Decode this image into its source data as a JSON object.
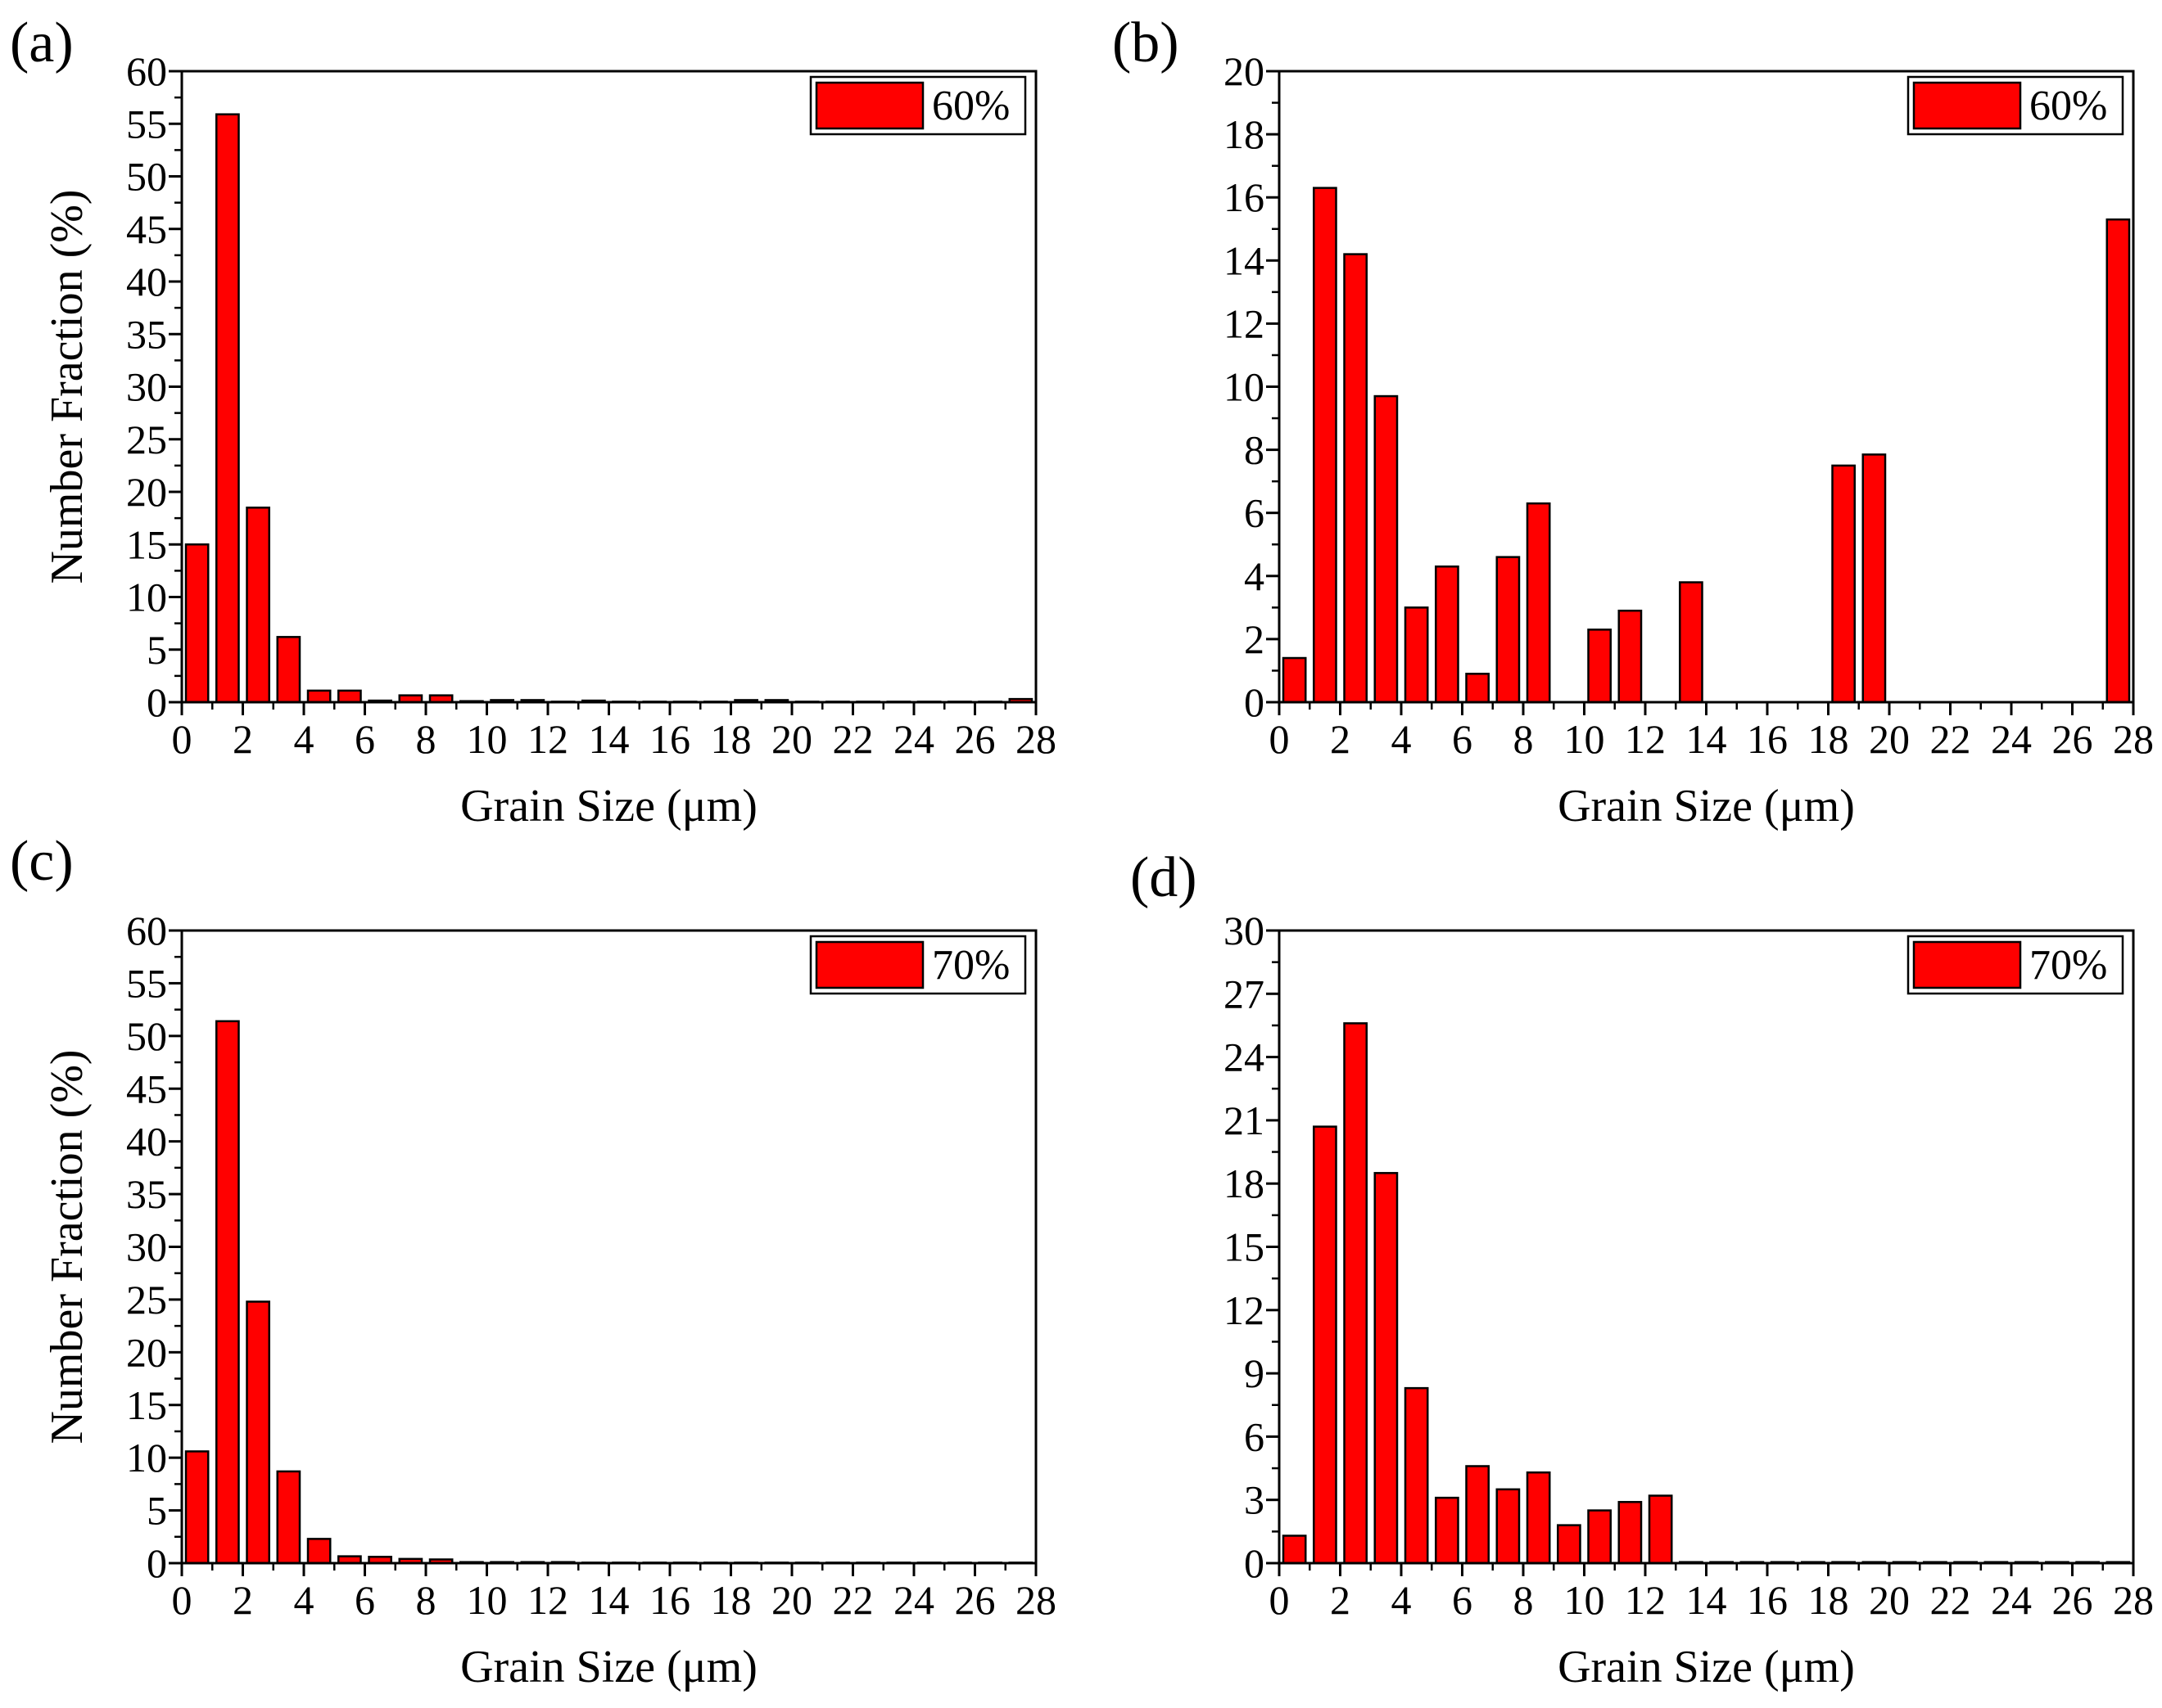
{
  "figure": {
    "bar_color": "#ff0000",
    "edge_color": "#000000"
  },
  "chart_data": [
    {
      "type": "bar",
      "panel": "(a)",
      "legend": "60%",
      "xlabel": "Grain Size (μm)",
      "ylabel": "Number Fraction (%)",
      "xlim": [
        0,
        28
      ],
      "ylim": [
        0,
        60
      ],
      "xticks": [
        0,
        2,
        4,
        6,
        8,
        10,
        12,
        14,
        16,
        18,
        20,
        22,
        24,
        26,
        28
      ],
      "yticks": [
        0,
        5,
        10,
        15,
        20,
        25,
        30,
        35,
        40,
        45,
        50,
        55,
        60
      ],
      "bin_width": 1,
      "x": [
        0.5,
        1.5,
        2.5,
        3.5,
        4.5,
        5.5,
        6.5,
        7.5,
        8.5,
        9.5,
        10.5,
        11.5,
        12.5,
        13.5,
        14.5,
        15.5,
        16.5,
        17.5,
        18.5,
        19.5,
        20.5,
        21.5,
        22.5,
        23.5,
        24.5,
        25.5,
        26.5,
        27.5
      ],
      "values": [
        15.0,
        55.9,
        18.5,
        6.2,
        1.1,
        1.1,
        0.15,
        0.65,
        0.65,
        0.1,
        0.2,
        0.2,
        0.05,
        0.15,
        0.05,
        0.05,
        0.05,
        0.05,
        0.2,
        0.2,
        0.05,
        0.05,
        0.05,
        0.05,
        0.05,
        0.05,
        0.05,
        0.3
      ]
    },
    {
      "type": "bar",
      "panel": "(b)",
      "legend": "60%",
      "xlabel": "Grain Size (μm)",
      "ylabel": "",
      "xlim": [
        0,
        28
      ],
      "ylim": [
        0,
        20
      ],
      "xticks": [
        0,
        2,
        4,
        6,
        8,
        10,
        12,
        14,
        16,
        18,
        20,
        22,
        24,
        26,
        28
      ],
      "yticks": [
        0,
        2,
        4,
        6,
        8,
        10,
        12,
        14,
        16,
        18,
        20
      ],
      "bin_width": 1,
      "x": [
        0.5,
        1.5,
        2.5,
        3.5,
        4.5,
        5.5,
        6.5,
        7.5,
        8.5,
        9.5,
        10.5,
        11.5,
        12.5,
        13.5,
        14.5,
        15.5,
        16.5,
        17.5,
        18.5,
        19.5,
        20.5,
        21.5,
        22.5,
        23.5,
        24.5,
        25.5,
        26.5,
        27.5
      ],
      "values": [
        1.4,
        16.3,
        14.2,
        9.7,
        3.0,
        4.3,
        0.9,
        4.6,
        6.3,
        0,
        2.3,
        2.9,
        0,
        3.8,
        0,
        0,
        0,
        0,
        7.5,
        7.85,
        0,
        0,
        0,
        0,
        0,
        0,
        0,
        15.3
      ]
    },
    {
      "type": "bar",
      "panel": "(c)",
      "legend": "70%",
      "xlabel": "Grain Size (μm)",
      "ylabel": "Number Fraction (%)",
      "xlim": [
        0,
        28
      ],
      "ylim": [
        0,
        60
      ],
      "xticks": [
        0,
        2,
        4,
        6,
        8,
        10,
        12,
        14,
        16,
        18,
        20,
        22,
        24,
        26,
        28
      ],
      "yticks": [
        0,
        5,
        10,
        15,
        20,
        25,
        30,
        35,
        40,
        45,
        50,
        55,
        60
      ],
      "bin_width": 1,
      "x": [
        0.5,
        1.5,
        2.5,
        3.5,
        4.5,
        5.5,
        6.5,
        7.5,
        8.5,
        9.5,
        10.5,
        11.5,
        12.5,
        13.5,
        14.5,
        15.5,
        16.5,
        17.5,
        18.5,
        19.5,
        20.5,
        21.5,
        22.5,
        23.5,
        24.5,
        25.5,
        26.5,
        27.5
      ],
      "values": [
        10.6,
        51.4,
        24.8,
        8.7,
        2.3,
        0.65,
        0.6,
        0.4,
        0.35,
        0.1,
        0.1,
        0.1,
        0.1,
        0.05,
        0.05,
        0.05,
        0.05,
        0.05,
        0.05,
        0.05,
        0.05,
        0.05,
        0.05,
        0.05,
        0.05,
        0.05,
        0.05,
        0.05
      ]
    },
    {
      "type": "bar",
      "panel": "(d)",
      "legend": "70%",
      "xlabel": "Grain Size (μm)",
      "ylabel": "",
      "xlim": [
        0,
        28
      ],
      "ylim": [
        0,
        30
      ],
      "xticks": [
        0,
        2,
        4,
        6,
        8,
        10,
        12,
        14,
        16,
        18,
        20,
        22,
        24,
        26,
        28
      ],
      "yticks": [
        0,
        3,
        6,
        9,
        12,
        15,
        18,
        21,
        24,
        27,
        30
      ],
      "bin_width": 1,
      "x": [
        0.5,
        1.5,
        2.5,
        3.5,
        4.5,
        5.5,
        6.5,
        7.5,
        8.5,
        9.5,
        10.5,
        11.5,
        12.5,
        13.5,
        14.5,
        15.5,
        16.5,
        17.5,
        18.5,
        19.5,
        20.5,
        21.5,
        22.5,
        23.5,
        24.5,
        25.5,
        26.5,
        27.5
      ],
      "values": [
        1.3,
        20.7,
        25.6,
        18.5,
        8.3,
        3.1,
        4.6,
        3.5,
        4.3,
        1.8,
        2.5,
        2.9,
        3.2,
        0.05,
        0.05,
        0.05,
        0.05,
        0.05,
        0.05,
        0.05,
        0.05,
        0.05,
        0.05,
        0.05,
        0.05,
        0.05,
        0.05,
        0.05
      ]
    }
  ]
}
